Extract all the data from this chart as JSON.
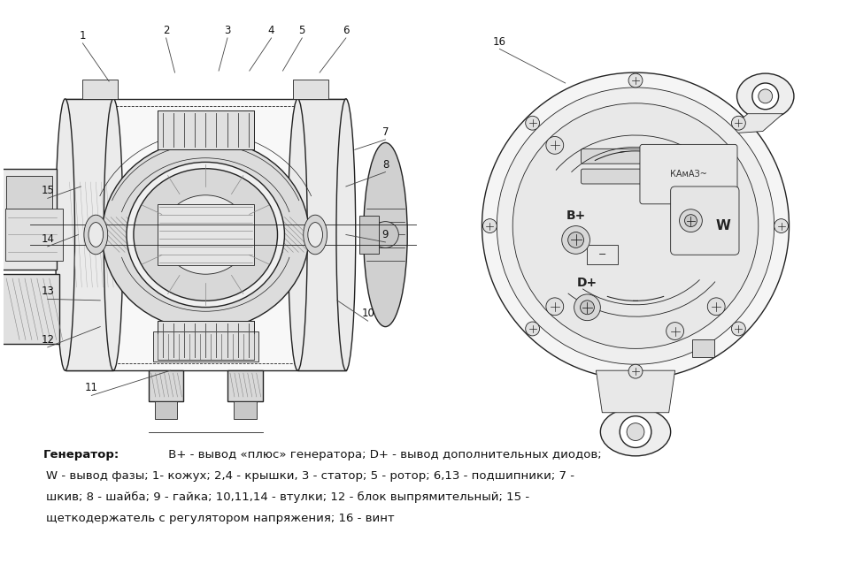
{
  "bg_color": "#ffffff",
  "fig_width": 9.75,
  "fig_height": 6.46,
  "label_color": "#111111",
  "line_color": "#222222",
  "hatch_color": "#555555",
  "caption_line1_bold": "Генератор:",
  "caption_line1_rest": " B+ - вывод «плюс» генератора; D+ - вывод дополнительных диодов;",
  "caption_line2": "W - вывод фазы; 1- кожух; 2,4 - крышки, 3 - статор; 5 - ротор; 6,13 - подшипники; 7 -",
  "caption_line3": "шкив; 8 - шайба; 9 - гайка; 10,11,14 - втулки; 12 - блок выпрямительный; 15 -",
  "caption_line4": "щеткодержатель с регулятором напряжения; 16 - винт"
}
